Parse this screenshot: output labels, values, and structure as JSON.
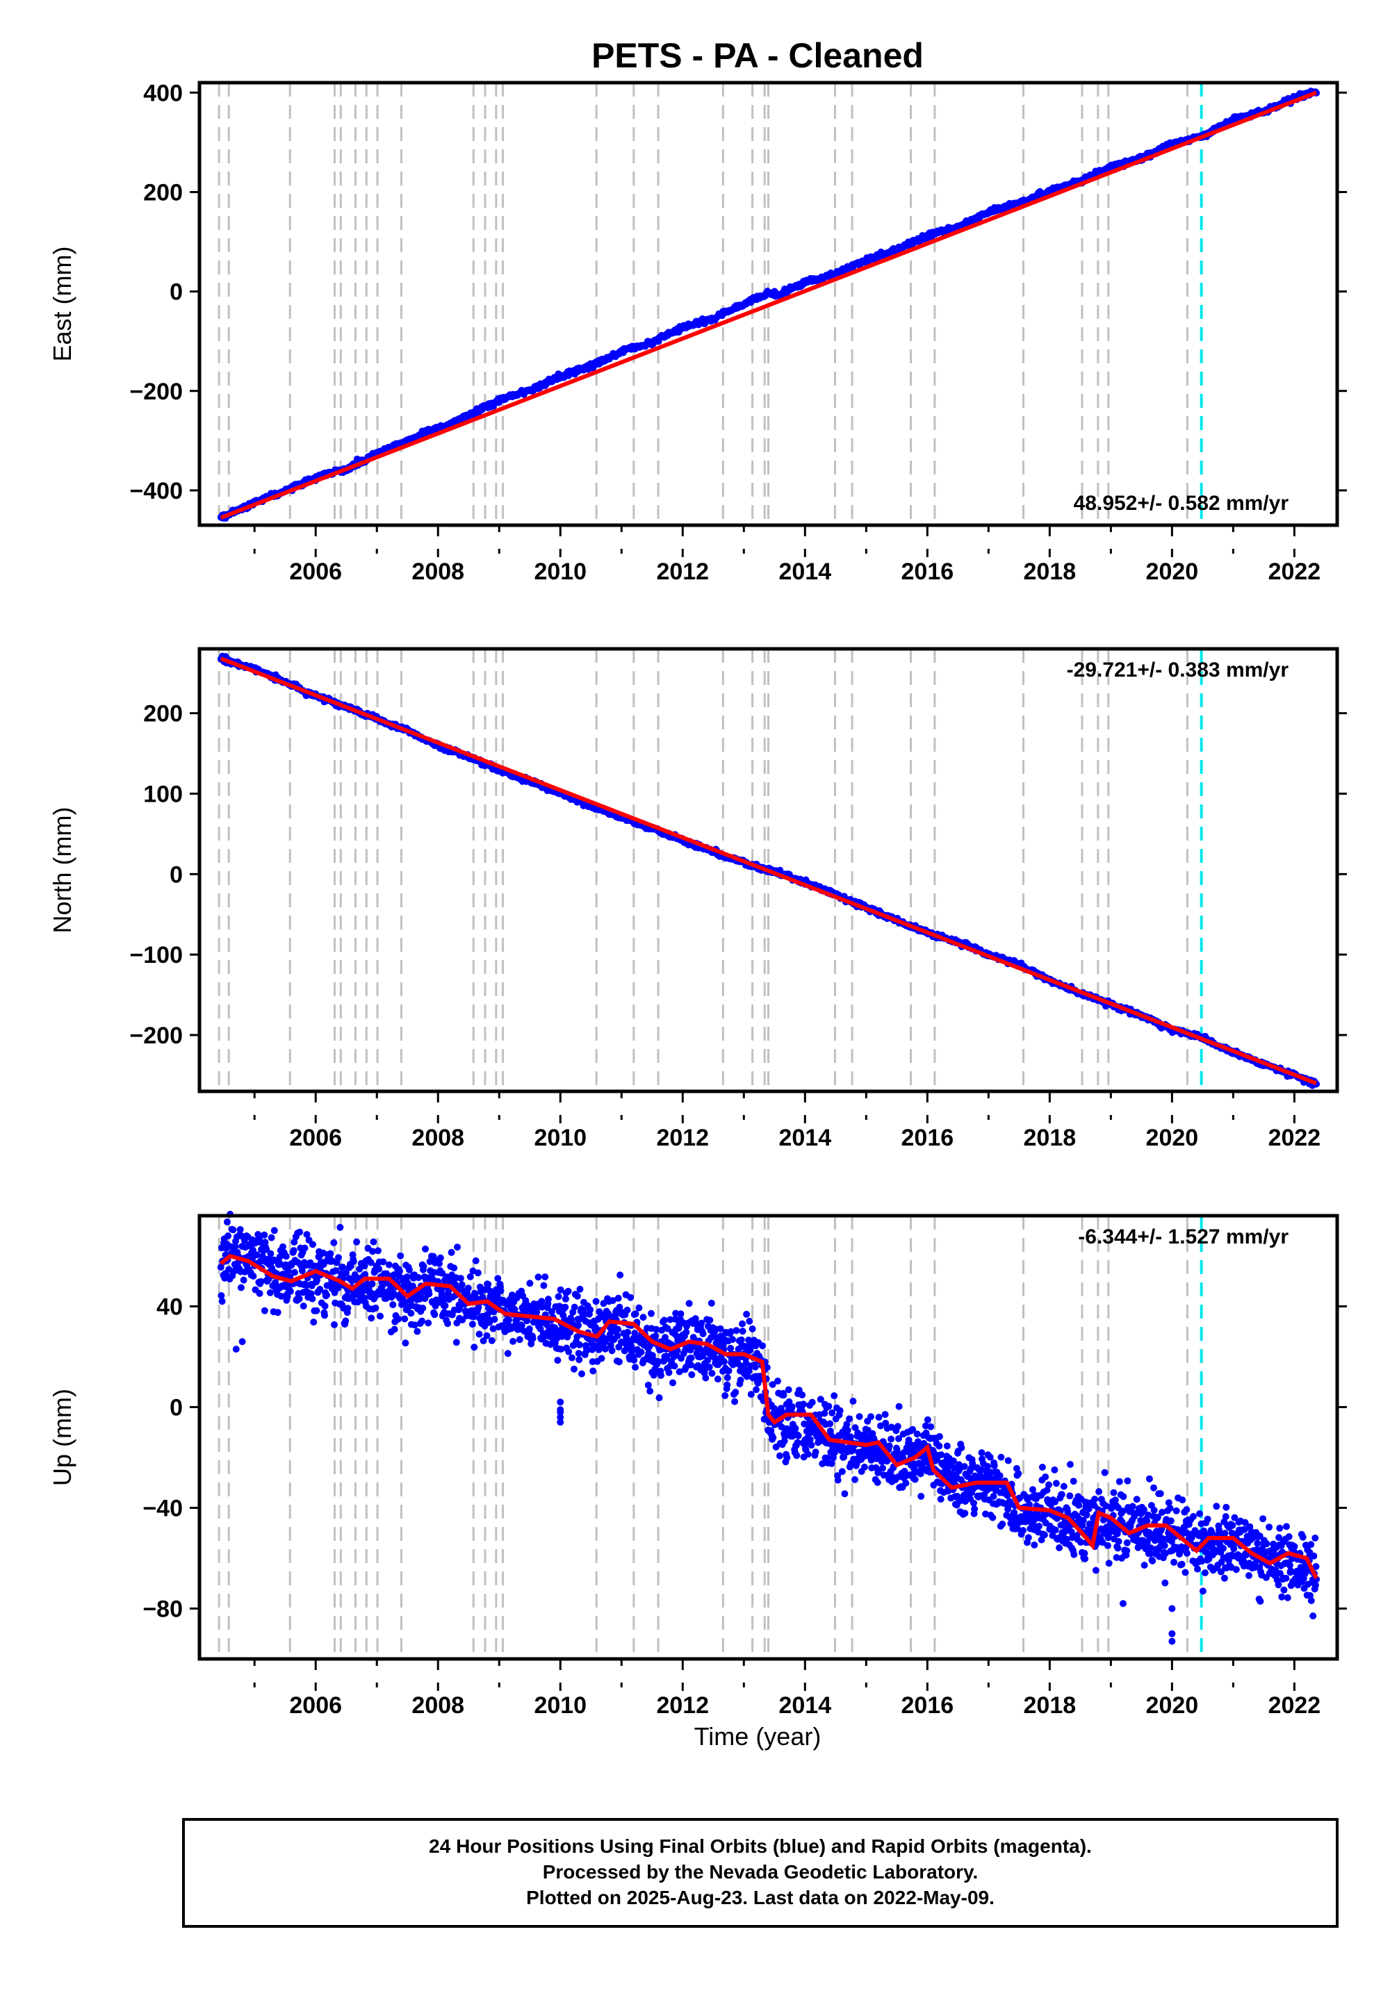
{
  "title": "PETS  - PA - Cleaned",
  "chart_data": [
    {
      "type": "scatter",
      "name": "east",
      "ylabel": "East (mm)",
      "xlim": [
        2004.1,
        2022.7
      ],
      "ylim": [
        -470,
        420
      ],
      "yticks": [
        400,
        200,
        0,
        -200,
        -400
      ],
      "xticks": [
        2006,
        2008,
        2010,
        2012,
        2014,
        2016,
        2018,
        2020,
        2022
      ],
      "rate_label": "48.952+/- 0.582 mm/yr",
      "rate_position": "bottom-right",
      "points": [
        [
          2004.45,
          -455
        ],
        [
          2005,
          -425
        ],
        [
          2005.5,
          -400
        ],
        [
          2006,
          -375
        ],
        [
          2006.5,
          -358
        ],
        [
          2007,
          -325
        ],
        [
          2007.5,
          -300
        ],
        [
          2008,
          -275
        ],
        [
          2008.5,
          -250
        ],
        [
          2009,
          -218
        ],
        [
          2009.5,
          -200
        ],
        [
          2010,
          -170
        ],
        [
          2010.5,
          -150
        ],
        [
          2011,
          -120
        ],
        [
          2011.5,
          -102
        ],
        [
          2012,
          -72
        ],
        [
          2012.5,
          -55
        ],
        [
          2013,
          -25
        ],
        [
          2013.4,
          -3
        ],
        [
          2013.55,
          -8
        ],
        [
          2014,
          18
        ],
        [
          2014.5,
          35
        ],
        [
          2015,
          62
        ],
        [
          2015.5,
          85
        ],
        [
          2016,
          112
        ],
        [
          2016.5,
          130
        ],
        [
          2017,
          160
        ],
        [
          2017.5,
          178
        ],
        [
          2018,
          202
        ],
        [
          2018.5,
          222
        ],
        [
          2019,
          250
        ],
        [
          2019.5,
          268
        ],
        [
          2020,
          297
        ],
        [
          2020.5,
          312
        ],
        [
          2021,
          345
        ],
        [
          2021.5,
          362
        ],
        [
          2022,
          390
        ],
        [
          2022.36,
          400
        ]
      ],
      "scatter": 5,
      "fit": [
        [
          2004.45,
          -455
        ],
        [
          2022.36,
          400
        ]
      ]
    },
    {
      "type": "scatter",
      "name": "north",
      "ylabel": "North (mm)",
      "xlim": [
        2004.1,
        2022.7
      ],
      "ylim": [
        -270,
        280
      ],
      "yticks": [
        200,
        100,
        0,
        -100,
        -200
      ],
      "xticks": [
        2006,
        2008,
        2010,
        2012,
        2014,
        2016,
        2018,
        2020,
        2022
      ],
      "rate_label": "-29.721+/- 0.383 mm/yr",
      "rate_position": "top-right",
      "points": [
        [
          2004.45,
          268
        ],
        [
          2005,
          255
        ],
        [
          2005.5,
          238
        ],
        [
          2006,
          222
        ],
        [
          2006.5,
          208
        ],
        [
          2007,
          193
        ],
        [
          2007.5,
          178
        ],
        [
          2008,
          160
        ],
        [
          2008.5,
          145
        ],
        [
          2009,
          130
        ],
        [
          2009.5,
          115
        ],
        [
          2010,
          100
        ],
        [
          2010.5,
          85
        ],
        [
          2011,
          70
        ],
        [
          2011.5,
          57
        ],
        [
          2012,
          42
        ],
        [
          2012.5,
          28
        ],
        [
          2013,
          14
        ],
        [
          2013.5,
          3
        ],
        [
          2014,
          -10
        ],
        [
          2014.5,
          -25
        ],
        [
          2015,
          -42
        ],
        [
          2015.5,
          -58
        ],
        [
          2016,
          -73
        ],
        [
          2016.5,
          -85
        ],
        [
          2017,
          -100
        ],
        [
          2017.5,
          -112
        ],
        [
          2018,
          -132
        ],
        [
          2018.5,
          -148
        ],
        [
          2019,
          -162
        ],
        [
          2019.5,
          -176
        ],
        [
          2020,
          -193
        ],
        [
          2020.5,
          -203
        ],
        [
          2021,
          -222
        ],
        [
          2021.5,
          -236
        ],
        [
          2022,
          -250
        ],
        [
          2022.36,
          -260
        ]
      ],
      "scatter": 3,
      "fit": [
        [
          2004.45,
          268
        ],
        [
          2022.36,
          -260
        ]
      ]
    },
    {
      "type": "scatter",
      "name": "up",
      "ylabel": "Up (mm)",
      "xlabel": "Time (year)",
      "xlim": [
        2004.1,
        2022.7
      ],
      "ylim": [
        -100,
        76
      ],
      "yticks": [
        40,
        0,
        -40,
        -80
      ],
      "xticks": [
        2006,
        2008,
        2010,
        2012,
        2014,
        2016,
        2018,
        2020,
        2022
      ],
      "rate_label": "-6.344+/- 1.527 mm/yr",
      "rate_position": "top-right",
      "points": [
        [
          2004.45,
          58
        ],
        [
          2004.7,
          62
        ],
        [
          2005,
          58
        ],
        [
          2005.5,
          52
        ],
        [
          2006,
          53
        ],
        [
          2006.5,
          48
        ],
        [
          2007,
          50
        ],
        [
          2007.5,
          44
        ],
        [
          2008,
          48
        ],
        [
          2008.5,
          42
        ],
        [
          2009,
          38
        ],
        [
          2009.5,
          35
        ],
        [
          2010,
          33
        ],
        [
          2010.5,
          30
        ],
        [
          2011,
          33
        ],
        [
          2011.5,
          22
        ],
        [
          2012,
          26
        ],
        [
          2012.5,
          22
        ],
        [
          2013,
          20
        ],
        [
          2013.3,
          15
        ],
        [
          2013.42,
          -5
        ],
        [
          2014,
          -8
        ],
        [
          2014.5,
          -15
        ],
        [
          2015,
          -15
        ],
        [
          2015.5,
          -22
        ],
        [
          2016,
          -18
        ],
        [
          2016.5,
          -30
        ],
        [
          2017,
          -30
        ],
        [
          2017.5,
          -40
        ],
        [
          2018,
          -42
        ],
        [
          2018.5,
          -48
        ],
        [
          2019,
          -45
        ],
        [
          2019.5,
          -48
        ],
        [
          2020,
          -50
        ],
        [
          2020.5,
          -55
        ],
        [
          2021,
          -52
        ],
        [
          2021.5,
          -60
        ],
        [
          2022,
          -60
        ],
        [
          2022.36,
          -68
        ]
      ],
      "fit_steps": [
        [
          2004.45,
          57
        ],
        [
          2004.6,
          60
        ],
        [
          2004.9,
          58
        ],
        [
          2005.3,
          52
        ],
        [
          2005.6,
          50
        ],
        [
          2006,
          54
        ],
        [
          2006.4,
          50
        ],
        [
          2006.6,
          47
        ],
        [
          2006.8,
          51
        ],
        [
          2007.2,
          51
        ],
        [
          2007.5,
          44
        ],
        [
          2007.8,
          49
        ],
        [
          2008.2,
          48
        ],
        [
          2008.5,
          41
        ],
        [
          2008.8,
          42
        ],
        [
          2009.1,
          37
        ],
        [
          2009.5,
          36
        ],
        [
          2009.9,
          35
        ],
        [
          2010.3,
          30
        ],
        [
          2010.6,
          28
        ],
        [
          2010.8,
          34
        ],
        [
          2011.2,
          33
        ],
        [
          2011.5,
          26
        ],
        [
          2011.8,
          23
        ],
        [
          2012.1,
          26
        ],
        [
          2012.4,
          25
        ],
        [
          2012.7,
          21
        ],
        [
          2013,
          21
        ],
        [
          2013.3,
          18
        ],
        [
          2013.4,
          -3
        ],
        [
          2013.5,
          -6
        ],
        [
          2013.7,
          -3
        ],
        [
          2014.1,
          -3
        ],
        [
          2014.4,
          -13
        ],
        [
          2014.7,
          -14
        ],
        [
          2015,
          -15
        ],
        [
          2015.2,
          -14
        ],
        [
          2015.5,
          -23
        ],
        [
          2015.8,
          -20
        ],
        [
          2016,
          -16
        ],
        [
          2016.1,
          -25
        ],
        [
          2016.4,
          -32
        ],
        [
          2016.8,
          -30
        ],
        [
          2017.3,
          -30
        ],
        [
          2017.5,
          -40
        ],
        [
          2018,
          -41
        ],
        [
          2018.3,
          -44
        ],
        [
          2018.6,
          -52
        ],
        [
          2018.7,
          -55
        ],
        [
          2018.8,
          -42
        ],
        [
          2019,
          -44
        ],
        [
          2019.3,
          -50
        ],
        [
          2019.6,
          -47
        ],
        [
          2019.9,
          -47
        ],
        [
          2020.2,
          -53
        ],
        [
          2020.4,
          -57
        ],
        [
          2020.6,
          -52
        ],
        [
          2021,
          -52
        ],
        [
          2021.3,
          -58
        ],
        [
          2021.6,
          -62
        ],
        [
          2021.9,
          -58
        ],
        [
          2022.2,
          -60
        ],
        [
          2022.36,
          -68
        ]
      ],
      "scatter": 12,
      "outliers": [
        [
          2004.7,
          23
        ],
        [
          2004.8,
          26
        ],
        [
          2010,
          -2
        ],
        [
          2010,
          -4
        ],
        [
          2010,
          -6
        ],
        [
          2010,
          -1
        ],
        [
          2010,
          2
        ],
        [
          2016.8,
          -30
        ],
        [
          2019.2,
          -78
        ],
        [
          2020,
          -80
        ],
        [
          2020,
          -90
        ],
        [
          2020,
          -93
        ]
      ]
    }
  ],
  "event_lines": {
    "gray_dashed": [
      2004.42,
      2004.58,
      2005.58,
      2006.31,
      2006.41,
      2006.65,
      2006.83,
      2007.01,
      2007.4,
      2008.58,
      2008.77,
      2008.95,
      2009.06,
      2010.59,
      2011.2,
      2011.6,
      2012.66,
      2013.14,
      2013.34,
      2013.4,
      2014.49,
      2014.77,
      2015.73,
      2016.12,
      2017.57,
      2018.53,
      2018.79,
      2018.96,
      2020.25
    ],
    "cyan_dashed": [
      2020.48
    ]
  },
  "colors": {
    "points": "#0000ff",
    "fit": "#ff0000",
    "event_line": "#c0c0c0",
    "antenna_line": "#00e5ee",
    "frame": "#000000"
  },
  "footer": {
    "line1": "24 Hour Positions Using Final Orbits (blue) and Rapid Orbits (magenta).",
    "line2": "Processed by the Nevada Geodetic Laboratory.",
    "line3": "Plotted on 2025-Aug-23. Last data on 2022-May-09."
  }
}
